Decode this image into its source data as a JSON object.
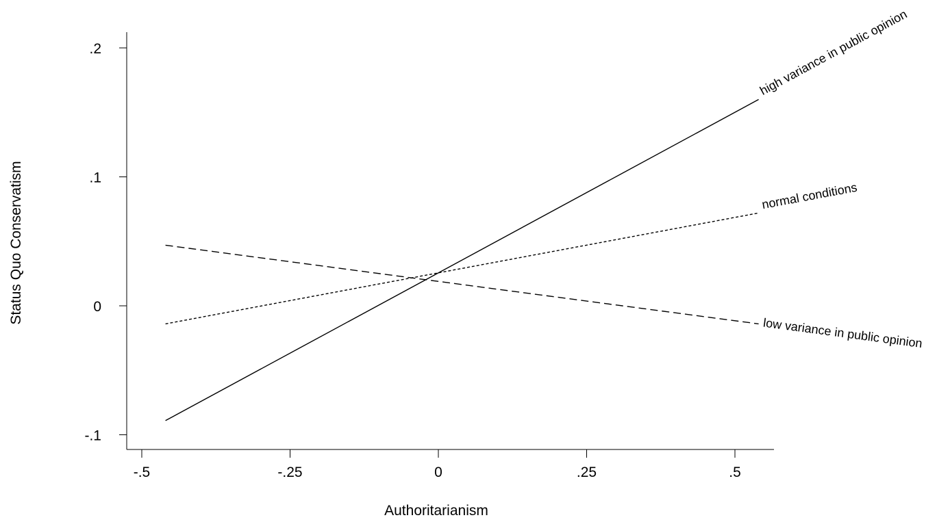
{
  "chart_data": {
    "type": "line",
    "title": "",
    "xlabel": "Authoritarianism",
    "ylabel": "Status Quo Conservatism",
    "xlim": [
      -0.55,
      0.56
    ],
    "ylim": [
      -0.112,
      0.212
    ],
    "xticks": [
      {
        "value": -0.5,
        "label": "-.5"
      },
      {
        "value": -0.25,
        "label": "-.25"
      },
      {
        "value": 0,
        "label": "0"
      },
      {
        "value": 0.25,
        "label": ".25"
      },
      {
        "value": 0.5,
        "label": ".5"
      }
    ],
    "yticks": [
      {
        "value": -0.1,
        "label": "-.1"
      },
      {
        "value": 0,
        "label": "0"
      },
      {
        "value": 0.1,
        "label": ".1"
      },
      {
        "value": 0.2,
        "label": ".2"
      }
    ],
    "grid": false,
    "legend": "none",
    "series": [
      {
        "name": "high variance in public opinion",
        "style": "solid",
        "x": [
          -0.46,
          0.54
        ],
        "y": [
          -0.089,
          0.16
        ]
      },
      {
        "name": "normal conditions",
        "style": "short-dash",
        "x": [
          -0.46,
          0.54
        ],
        "y": [
          -0.014,
          0.072
        ]
      },
      {
        "name": "low variance in public opinion",
        "style": "long-dash",
        "x": [
          -0.46,
          0.54
        ],
        "y": [
          0.047,
          -0.014
        ]
      }
    ]
  }
}
